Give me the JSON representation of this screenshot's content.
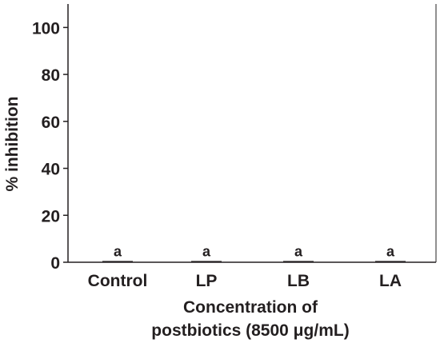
{
  "chart_data": {
    "type": "bar",
    "categories": [
      "Control",
      "LP",
      "LB",
      "LA"
    ],
    "values": [
      0,
      0,
      0,
      0
    ],
    "significance": [
      "a",
      "a",
      "a",
      "a"
    ],
    "xlabel_line1": "Concentration of",
    "xlabel_line2": "postbiotics (8500 μg/mL)",
    "ylabel": "% inhibition",
    "ylim": [
      0,
      110
    ],
    "yticks": [
      0,
      20,
      40,
      60,
      80,
      100
    ],
    "grid": false,
    "colors": {
      "axis": "#231f20",
      "bar": "#231f20",
      "background": "#ffffff"
    }
  }
}
